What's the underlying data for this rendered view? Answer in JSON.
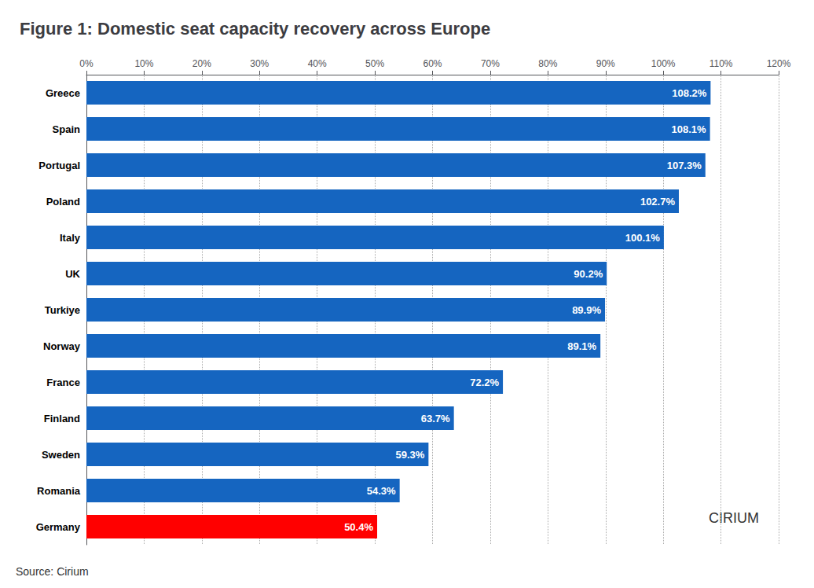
{
  "chart_data": {
    "type": "bar",
    "orientation": "horizontal",
    "title": "Figure 1: Domestic seat capacity recovery across Europe",
    "annotations": [
      "Source: Cirium",
      "CIRIUM"
    ],
    "categories": [
      "Greece",
      "Spain",
      "Portugal",
      "Poland",
      "Italy",
      "UK",
      "Turkiye",
      "Norway",
      "France",
      "Finland",
      "Sweden",
      "Romania",
      "Germany"
    ],
    "values": [
      108.2,
      108.1,
      107.3,
      102.7,
      100.1,
      90.2,
      89.9,
      89.1,
      72.2,
      63.7,
      59.3,
      54.3,
      50.4
    ],
    "value_labels": [
      "108.2%",
      "108.1%",
      "107.3%",
      "102.7%",
      "100.1%",
      "90.2%",
      "89.9%",
      "89.1%",
      "72.2%",
      "63.7%",
      "59.3%",
      "54.3%",
      "50.4%"
    ],
    "data_labels": true,
    "colors": [
      "#1565C0",
      "#1565C0",
      "#1565C0",
      "#1565C0",
      "#1565C0",
      "#1565C0",
      "#1565C0",
      "#1565C0",
      "#1565C0",
      "#1565C0",
      "#1565C0",
      "#1565C0",
      "#FF0000"
    ],
    "xlim": [
      0,
      120
    ],
    "xticks": [
      {
        "value": 0,
        "label": "0%"
      },
      {
        "value": 10,
        "label": "10%"
      },
      {
        "value": 20,
        "label": "20%"
      },
      {
        "value": 30,
        "label": "30%"
      },
      {
        "value": 40,
        "label": "40%"
      },
      {
        "value": 50,
        "label": "50%"
      },
      {
        "value": 60,
        "label": "60%"
      },
      {
        "value": 70,
        "label": "70%"
      },
      {
        "value": 80,
        "label": "80%"
      },
      {
        "value": 90,
        "label": "90%"
      },
      {
        "value": 100,
        "label": "100%"
      },
      {
        "value": 110,
        "label": "110%"
      },
      {
        "value": 120,
        "label": "120%"
      }
    ],
    "grid": true
  }
}
